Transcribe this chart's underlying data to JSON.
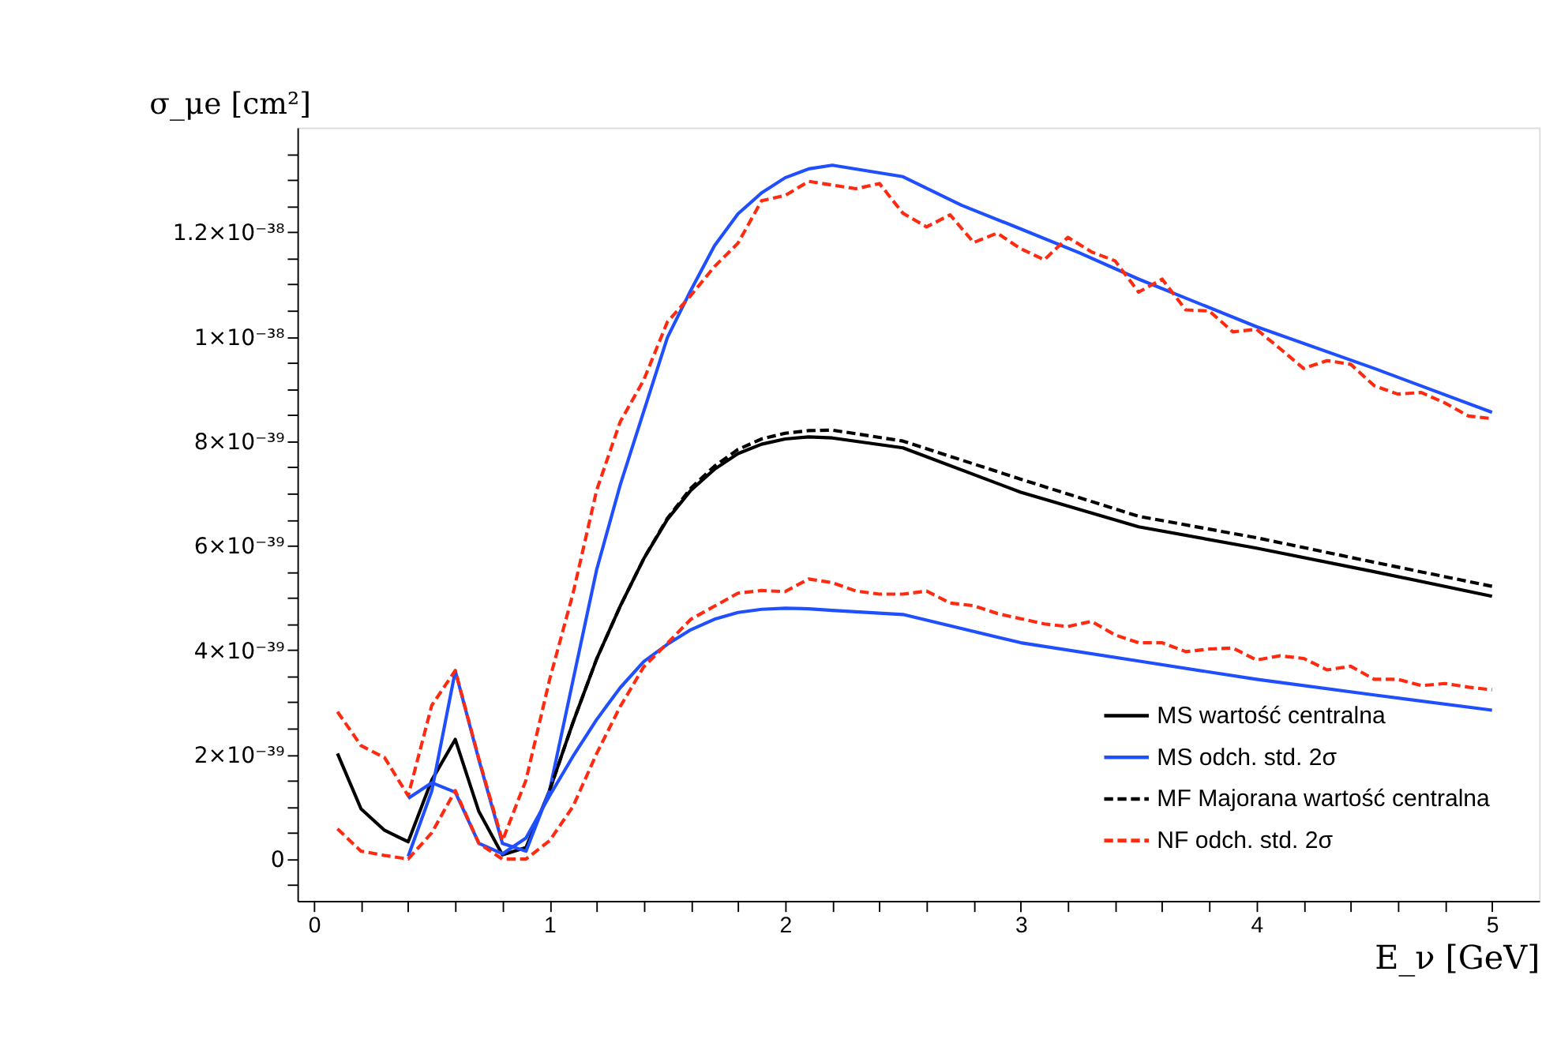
{
  "chart_data": {
    "type": "line",
    "xlabel": "E_ν [GeV]",
    "ylabel": "σ_μe [cm²]",
    "xlim": [
      -0.07,
      5.2
    ],
    "ylim": [
      -8e-40,
      1.4e-38
    ],
    "xticks": [
      0,
      {
        "value": 0.2,
        "label": null
      },
      {
        "value": 0.4,
        "label": null
      },
      {
        "value": 0.6,
        "label": null
      },
      {
        "value": 0.8,
        "label": null
      },
      1,
      {
        "value": 1.2,
        "label": null
      },
      {
        "value": 1.4,
        "label": null
      },
      {
        "value": 1.6,
        "label": null
      },
      {
        "value": 1.8,
        "label": null
      },
      2,
      {
        "value": 2.2,
        "label": null
      },
      {
        "value": 2.4,
        "label": null
      },
      {
        "value": 2.6,
        "label": null
      },
      {
        "value": 2.8,
        "label": null
      },
      3,
      {
        "value": 3.2,
        "label": null
      },
      {
        "value": 3.4,
        "label": null
      },
      {
        "value": 3.6,
        "label": null
      },
      {
        "value": 3.8,
        "label": null
      },
      4,
      {
        "value": 4.2,
        "label": null
      },
      {
        "value": 4.4,
        "label": null
      },
      {
        "value": 4.6,
        "label": null
      },
      {
        "value": 4.8,
        "label": null
      },
      5
    ],
    "yticks": [
      {
        "value": -5e-40,
        "label": null
      },
      0,
      {
        "value": 5e-40,
        "label": null
      },
      {
        "value": 1e-39,
        "label": null
      },
      {
        "value": 1.5e-39,
        "label": null
      },
      {
        "value": 2e-39,
        "label": "2×10⁻³⁹"
      },
      {
        "value": 2.5e-39,
        "label": null
      },
      {
        "value": 3e-39,
        "label": null
      },
      {
        "value": 3.5e-39,
        "label": null
      },
      {
        "value": 4e-39,
        "label": "4×10⁻³⁹"
      },
      {
        "value": 4.5e-39,
        "label": null
      },
      {
        "value": 5e-39,
        "label": null
      },
      {
        "value": 5.5e-39,
        "label": null
      },
      {
        "value": 6e-39,
        "label": "6×10⁻³⁹"
      },
      {
        "value": 6.5e-39,
        "label": null
      },
      {
        "value": 7e-39,
        "label": null
      },
      {
        "value": 7.5e-39,
        "label": null
      },
      {
        "value": 8e-39,
        "label": "8×10⁻³⁹"
      },
      {
        "value": 8.5e-39,
        "label": null
      },
      {
        "value": 9e-39,
        "label": null
      },
      {
        "value": 9.5e-39,
        "label": null
      },
      {
        "value": 1e-38,
        "label": "1×10⁻³⁸"
      },
      {
        "value": 1.05e-38,
        "label": null
      },
      {
        "value": 1.1e-38,
        "label": null
      },
      {
        "value": 1.15e-38,
        "label": null
      },
      {
        "value": 1.2e-38,
        "label": "1.2×10⁻³⁸"
      },
      {
        "value": 1.25e-38,
        "label": null
      },
      {
        "value": 1.3e-38,
        "label": null
      },
      {
        "value": 1.35e-38,
        "label": null
      }
    ],
    "grid": false,
    "legend": "bottom right",
    "series": [
      {
        "name": "MS wartość centralna",
        "color": "#000000",
        "line_style": "solid",
        "x": [
          0.1,
          0.2,
          0.3,
          0.4,
          0.5,
          0.6,
          0.7,
          0.8,
          0.9,
          1.0,
          1.1,
          1.2,
          1.3,
          1.4,
          1.5,
          1.6,
          1.7,
          1.8,
          1.9,
          2.0,
          2.1,
          2.2,
          2.5,
          3,
          3.5,
          4,
          4.5,
          5
        ],
        "values": [
          2.02e-39,
          9.6e-40,
          5.5e-40,
          3.3e-40,
          1.51e-39,
          2.29e-39,
          9.1e-40,
          8e-41,
          2.2e-40,
          1.31e-39,
          2.62e-39,
          3.83e-39,
          4.84e-39,
          5.75e-39,
          6.5e-39,
          7.06e-39,
          7.46e-39,
          7.76e-39,
          7.94e-39,
          8.04e-39,
          8.08e-39,
          8.06e-39,
          7.87e-39,
          7.02e-39,
          6.36e-39,
          5.95e-39,
          5.5e-39,
          5.03e-39
        ]
      },
      {
        "name": "MS odch. std. 2σ",
        "color": "#1f4fff",
        "line_style": "solid",
        "x": [
          0.4,
          0.5,
          0.6,
          0.7,
          0.8,
          0.9,
          1.0,
          1.1,
          1.2,
          1.3,
          1.4,
          1.5,
          1.6,
          1.7,
          1.8,
          1.9,
          2.0,
          2.1,
          2.2,
          2.5,
          2.75,
          3,
          3.25,
          3.5,
          4,
          4.5,
          5
        ],
        "values": [
          5e-41,
          1.3e-39,
          3.6e-39,
          1.9e-39,
          3e-40,
          1.5e-40,
          1.31e-39,
          3.43e-39,
          5.54e-39,
          7.16e-39,
          8.57e-39,
          9.98e-39,
          1.089e-38,
          1.174e-38,
          1.235e-38,
          1.275e-38,
          1.304e-38,
          1.321e-38,
          1.328e-38,
          1.306e-38,
          1.251e-38,
          1.206e-38,
          1.16e-38,
          1.11e-38,
          1.019e-38,
          9.39e-39,
          8.55e-39
        ]
      },
      {
        "name": "MF Majorana wartość centralna",
        "color": "#000000",
        "line_style": "dashed",
        "x": [
          1.0,
          1.1,
          1.2,
          1.3,
          1.4,
          1.5,
          1.6,
          1.7,
          1.8,
          1.9,
          2.0,
          2.1,
          2.2,
          2.5,
          3,
          3.5,
          4,
          4.5,
          5
        ],
        "values": [
          1.31e-39,
          2.62e-39,
          3.83e-39,
          4.84e-39,
          5.75e-39,
          6.52e-39,
          7.1e-39,
          7.52e-39,
          7.84e-39,
          8.04e-39,
          8.15e-39,
          8.2e-39,
          8.21e-39,
          8e-39,
          7.27e-39,
          6.56e-39,
          6.15e-39,
          5.68e-39,
          5.22e-39
        ]
      },
      {
        "name": "NF odch. std. 2σ",
        "color": "#ff2a10",
        "line_style": "dashed",
        "x": [
          0.1,
          0.2,
          0.3,
          0.4,
          0.5,
          0.6,
          0.7,
          0.8,
          0.9,
          1.0,
          1.1,
          1.2,
          1.3,
          1.4,
          1.5,
          1.6,
          1.7,
          1.8,
          1.9,
          2.0,
          2.1,
          2.2,
          2.3,
          2.4,
          2.5,
          2.6,
          2.7,
          2.8,
          2.9,
          3.0,
          3.1,
          3.2,
          3.3,
          3.4,
          3.5,
          3.6,
          3.7,
          3.8,
          3.9,
          4.0,
          4.1,
          4.2,
          4.3,
          4.4,
          4.5,
          4.6,
          4.7,
          4.8,
          4.9,
          5.0
        ],
        "values": [
          2.82e-39,
          2.17e-39,
          1.94e-39,
          1.21e-39,
          2.94e-39,
          3.61e-39,
          1.92e-39,
          3.5e-40,
          1.51e-39,
          3.43e-39,
          5.09e-39,
          7.06e-39,
          8.37e-39,
          9.17e-39,
          1.028e-38,
          1.079e-38,
          1.134e-38,
          1.179e-38,
          1.26e-38,
          1.27e-38,
          1.297e-38,
          1.29e-38,
          1.283e-38,
          1.293e-38,
          1.236e-38,
          1.21e-38,
          1.233e-38,
          1.18e-38,
          1.198e-38,
          1.168e-38,
          1.147e-38,
          1.19e-38,
          1.162e-38,
          1.145e-38,
          1.085e-38,
          1.11e-38,
          1.051e-38,
          1.049e-38,
          1.009e-38,
          1.014e-38,
          9.77e-39,
          9.39e-39,
          9.54e-39,
          9.47e-39,
          9.06e-39,
          8.9e-39,
          8.93e-39,
          8.73e-39,
          8.48e-39,
          8.43e-39
        ]
      },
      {
        "color": "#1f4fff",
        "line_style": "solid",
        "x": [
          0.4,
          0.5,
          0.6,
          0.7,
          0.8,
          0.9,
          1.0,
          1.1,
          1.2,
          1.3,
          1.4,
          1.5,
          1.6,
          1.7,
          1.8,
          1.9,
          2.0,
          2.1,
          2.2,
          2.5,
          3,
          3.5,
          4,
          4.5,
          5
        ],
        "values": [
          1.16e-39,
          1.46e-39,
          1.28e-39,
          3e-40,
          1e-40,
          4e-40,
          1.21e-39,
          1.97e-39,
          2.67e-39,
          3.28e-39,
          3.78e-39,
          4.11e-39,
          4.39e-39,
          4.59e-39,
          4.72e-39,
          4.78e-39,
          4.8e-39,
          4.79e-39,
          4.76e-39,
          4.68e-39,
          4.14e-39,
          3.79e-39,
          3.44e-39,
          3.14e-39,
          2.85e-39
        ]
      },
      {
        "color": "#ff2a10",
        "line_style": "dashed",
        "x": [
          0.1,
          0.2,
          0.3,
          0.4,
          0.5,
          0.6,
          0.7,
          0.8,
          0.9,
          1.0,
          1.1,
          1.2,
          1.3,
          1.4,
          1.5,
          1.6,
          1.7,
          1.8,
          1.9,
          2.0,
          2.1,
          2.2,
          2.3,
          2.4,
          2.5,
          2.6,
          2.7,
          2.8,
          2.9,
          3.0,
          3.1,
          3.2,
          3.3,
          3.4,
          3.5,
          3.6,
          3.7,
          3.8,
          3.9,
          4.0,
          4.1,
          4.2,
          4.3,
          4.4,
          4.5,
          4.6,
          4.7,
          4.8,
          4.9,
          5.0
        ],
        "values": [
          5.8e-40,
          1.5e-40,
          7e-41,
          0,
          5e-40,
          1.31e-39,
          3e-40,
          0,
          0,
          3.5e-40,
          1.01e-39,
          2.02e-39,
          2.92e-39,
          3.68e-39,
          4.13e-39,
          4.59e-39,
          4.84e-39,
          5.09e-39,
          5.14e-39,
          5.12e-39,
          5.36e-39,
          5.29e-39,
          5.13e-39,
          5.07e-39,
          5.07e-39,
          5.13e-39,
          4.9e-39,
          4.85e-39,
          4.7e-39,
          4.6e-39,
          4.5e-39,
          4.45e-39,
          4.55e-39,
          4.29e-39,
          4.14e-39,
          4.14e-39,
          3.97e-39,
          4.02e-39,
          4.04e-39,
          3.81e-39,
          3.89e-39,
          3.84e-39,
          3.62e-39,
          3.69e-39,
          3.44e-39,
          3.44e-39,
          3.32e-39,
          3.36e-39,
          3.29e-39,
          3.24e-39
        ]
      }
    ]
  }
}
